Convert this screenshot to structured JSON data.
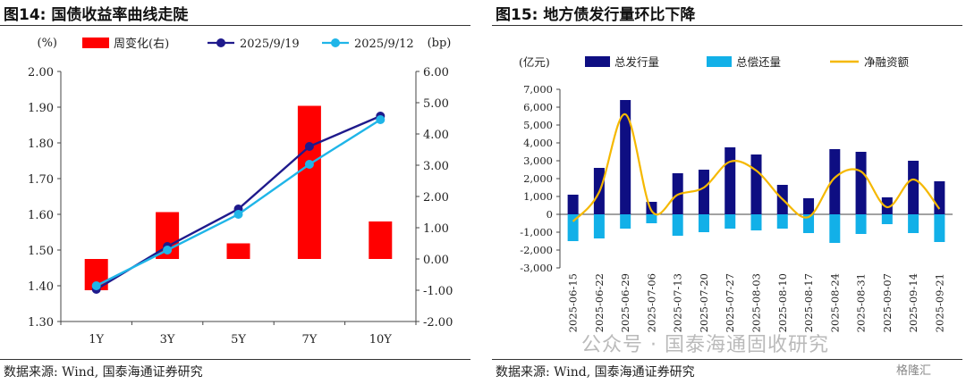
{
  "left": {
    "title": "图14:  国债收益率曲线走陡",
    "source": "数据来源:  Wind,  国泰海通证券研究",
    "chart_data": {
      "type": "bar+line",
      "categories": [
        "1Y",
        "3Y",
        "5Y",
        "7Y",
        "10Y"
      ],
      "y_left_label": "(%)",
      "y_right_label": "(bp)",
      "y_left_lim": [
        1.3,
        2.0
      ],
      "y_right_lim": [
        -2.0,
        6.0
      ],
      "y_left_ticks": [
        "1.30",
        "1.40",
        "1.50",
        "1.60",
        "1.70",
        "1.80",
        "1.90",
        "2.00"
      ],
      "y_right_ticks": [
        "-2.00",
        "-1.00",
        "0.00",
        "1.00",
        "2.00",
        "3.00",
        "4.00",
        "5.00",
        "6.00"
      ],
      "bars": {
        "name": "周变化(右)",
        "axis": "right",
        "color": "#ff0000",
        "values": [
          -1.0,
          1.5,
          0.5,
          4.9,
          1.2
        ]
      },
      "series": [
        {
          "name": "2025/9/19",
          "axis": "left",
          "color": "#1f1a8c",
          "values": [
            1.39,
            1.51,
            1.615,
            1.79,
            1.875
          ]
        },
        {
          "name": "2025/9/12",
          "axis": "left",
          "color": "#1fb5e8",
          "values": [
            1.4,
            1.5,
            1.6,
            1.74,
            1.865
          ]
        }
      ],
      "legend_position": "top"
    }
  },
  "right": {
    "title": "图15:  地方债发行量环比下降",
    "source": "数据来源:  Wind,  国泰海通证券研究",
    "chart_data": {
      "type": "bar+line",
      "y_label": "(亿元)",
      "ylim": [
        -3000,
        7000
      ],
      "y_ticks": [
        "-3,000",
        "-2,000",
        "-1,000",
        "0",
        "1,000",
        "2,000",
        "3,000",
        "4,000",
        "5,000",
        "6,000",
        "7,000"
      ],
      "categories": [
        "2025-06-15",
        "2025-06-22",
        "2025-06-29",
        "2025-07-06",
        "2025-07-13",
        "2025-07-20",
        "2025-07-27",
        "2025-08-03",
        "2025-08-10",
        "2025-08-17",
        "2025-08-24",
        "2025-08-31",
        "2025-09-07",
        "2025-09-14",
        "2025-09-21"
      ],
      "series": [
        {
          "name": "总发行量",
          "kind": "bar",
          "color": "#0e0e82",
          "values": [
            1100,
            2600,
            6400,
            700,
            2300,
            2500,
            3750,
            3350,
            1650,
            900,
            3650,
            3500,
            950,
            3000,
            1850
          ]
        },
        {
          "name": "总偿还量",
          "kind": "bar",
          "color": "#12b0e8",
          "values": [
            -1500,
            -1350,
            -800,
            -500,
            -1200,
            -1000,
            -800,
            -900,
            -800,
            -1050,
            -1600,
            -1100,
            -550,
            -1050,
            -1550
          ]
        },
        {
          "name": "净融资额",
          "kind": "line",
          "color": "#f5b800",
          "values": [
            -400,
            1250,
            5600,
            200,
            1100,
            1500,
            2950,
            2450,
            850,
            -150,
            2050,
            2400,
            400,
            1950,
            300
          ]
        }
      ],
      "legend_position": "top"
    }
  },
  "watermark": "公众号 · 国泰海通固收研究",
  "logo_text": "格隆汇"
}
